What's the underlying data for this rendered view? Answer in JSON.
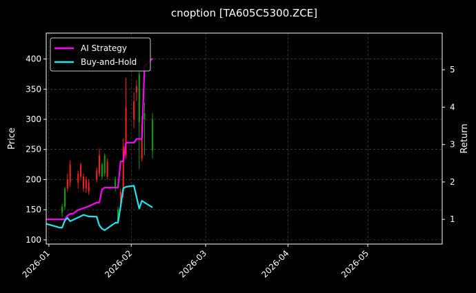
{
  "chart_data": {
    "type": "line",
    "title": "cnoption [TA605C5300.ZCE]",
    "xlabel": "",
    "ylabel": "Price",
    "y2label": "Return",
    "x_ticks": [
      "2026-01",
      "2026-02",
      "2026-03",
      "2026-04",
      "2026-05"
    ],
    "x_range": [
      "2025-12-31",
      "2026-05-29"
    ],
    "y_ticks": [
      100,
      150,
      200,
      250,
      300,
      350,
      400
    ],
    "ylim": [
      93,
      443
    ],
    "y2_ticks": [
      1,
      2,
      3,
      4,
      5
    ],
    "y2lim": [
      0.34,
      5.98
    ],
    "grid": true,
    "legend_position": "top-left",
    "candles": [
      {
        "date": "2026-01-06",
        "open": 145,
        "close": 155,
        "high": 160,
        "low": 138
      },
      {
        "date": "2026-01-07",
        "open": 155,
        "close": 185,
        "high": 188,
        "low": 150
      },
      {
        "date": "2026-01-08",
        "open": 200,
        "close": 185,
        "high": 210,
        "low": 180
      },
      {
        "date": "2026-01-09",
        "open": 225,
        "close": 195,
        "high": 232,
        "low": 188
      },
      {
        "date": "2026-01-12",
        "open": 210,
        "close": 195,
        "high": 215,
        "low": 185
      },
      {
        "date": "2026-01-13",
        "open": 225,
        "close": 205,
        "high": 228,
        "low": 200
      },
      {
        "date": "2026-01-14",
        "open": 205,
        "close": 185,
        "high": 210,
        "low": 180
      },
      {
        "date": "2026-01-15",
        "open": 200,
        "close": 185,
        "high": 205,
        "low": 178
      },
      {
        "date": "2026-01-16",
        "open": 195,
        "close": 180,
        "high": 200,
        "low": 175
      },
      {
        "date": "2026-01-19",
        "open": 215,
        "close": 200,
        "high": 220,
        "low": 195
      },
      {
        "date": "2026-01-20",
        "open": 240,
        "close": 210,
        "high": 252,
        "low": 205
      },
      {
        "date": "2026-01-21",
        "open": 205,
        "close": 225,
        "high": 228,
        "low": 200
      },
      {
        "date": "2026-01-22",
        "open": 210,
        "close": 240,
        "high": 243,
        "low": 205
      },
      {
        "date": "2026-01-23",
        "open": 230,
        "close": 205,
        "high": 235,
        "low": 200
      },
      {
        "date": "2026-01-26",
        "open": 185,
        "close": 200,
        "high": 205,
        "low": 180
      },
      {
        "date": "2026-01-27",
        "open": 130,
        "close": 150,
        "high": 155,
        "low": 128
      },
      {
        "date": "2026-01-28",
        "open": 180,
        "close": 160,
        "high": 185,
        "low": 155
      },
      {
        "date": "2026-01-29",
        "open": 255,
        "close": 180,
        "high": 268,
        "low": 170
      },
      {
        "date": "2026-01-30",
        "open": 320,
        "close": 240,
        "high": 368,
        "low": 235
      },
      {
        "date": "2026-02-02",
        "open": 330,
        "close": 300,
        "high": 345,
        "low": 285
      },
      {
        "date": "2026-02-03",
        "open": 355,
        "close": 345,
        "high": 365,
        "low": 330
      },
      {
        "date": "2026-02-04",
        "open": 295,
        "close": 375,
        "high": 400,
        "low": 217
      },
      {
        "date": "2026-02-05",
        "open": 290,
        "close": 235,
        "high": 305,
        "low": 230
      },
      {
        "date": "2026-02-06",
        "open": 300,
        "close": 310,
        "high": 328,
        "low": 240
      },
      {
        "date": "2026-02-09",
        "open": 248,
        "close": 300,
        "high": 310,
        "low": 235
      }
    ],
    "candle_colors": {
      "up": "#00aa00",
      "down": "#ff2020"
    },
    "series": [
      {
        "name": "AI Strategy",
        "color": "#ff00ff",
        "axis": "right",
        "x": [
          "2025-12-31",
          "2026-01-05",
          "2026-01-06",
          "2026-01-07",
          "2026-01-08",
          "2026-01-09",
          "2026-01-10",
          "2026-01-12",
          "2026-01-14",
          "2026-01-16",
          "2026-01-19",
          "2026-01-20",
          "2026-01-21",
          "2026-01-22",
          "2026-01-26",
          "2026-01-27",
          "2026-01-28",
          "2026-01-29",
          "2026-01-30",
          "2026-02-02",
          "2026-02-03",
          "2026-02-04",
          "2026-02-05",
          "2026-02-06",
          "2026-02-09"
        ],
        "y": [
          1.0,
          1.0,
          1.0,
          1.0,
          1.1,
          1.15,
          1.15,
          1.25,
          1.3,
          1.35,
          1.45,
          1.45,
          1.8,
          1.85,
          1.85,
          1.85,
          2.55,
          2.55,
          3.05,
          3.05,
          3.15,
          3.15,
          3.15,
          5.1,
          5.3
        ]
      },
      {
        "name": "Buy-and-Hold",
        "color": "#22e5ee",
        "axis": "right",
        "x": [
          "2025-12-31",
          "2026-01-05",
          "2026-01-06",
          "2026-01-07",
          "2026-01-08",
          "2026-01-09",
          "2026-01-12",
          "2026-01-14",
          "2026-01-16",
          "2026-01-19",
          "2026-01-20",
          "2026-01-21",
          "2026-01-22",
          "2026-01-26",
          "2026-01-27",
          "2026-01-28",
          "2026-01-29",
          "2026-01-30",
          "2026-02-02",
          "2026-02-04",
          "2026-02-05",
          "2026-02-06",
          "2026-02-09"
        ],
        "y": [
          0.88,
          0.78,
          0.78,
          0.97,
          1.04,
          0.95,
          1.05,
          1.12,
          1.08,
          1.07,
          0.84,
          0.75,
          0.71,
          0.91,
          0.91,
          1.35,
          1.83,
          1.87,
          1.9,
          1.29,
          1.5,
          1.45,
          1.32
        ]
      }
    ]
  }
}
